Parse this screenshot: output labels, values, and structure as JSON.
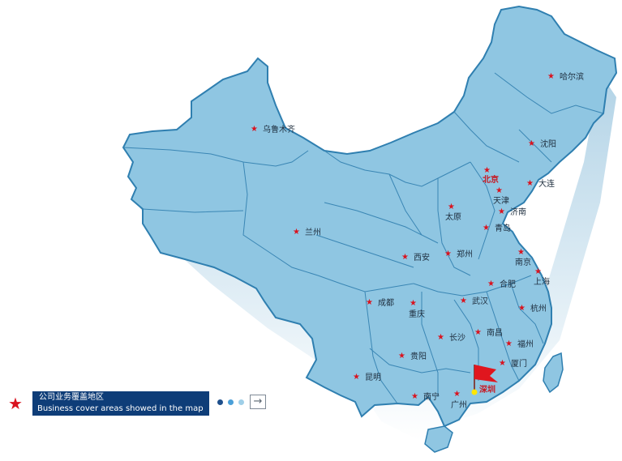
{
  "map": {
    "cities": [
      {
        "id": "urumqi",
        "name": "乌鲁木齐",
        "highlight": false
      },
      {
        "id": "harbin",
        "name": "哈尔滨",
        "highlight": false
      },
      {
        "id": "shenyang",
        "name": "沈阳",
        "highlight": false
      },
      {
        "id": "dalian",
        "name": "大连",
        "highlight": false
      },
      {
        "id": "beijing",
        "name": "北京",
        "highlight": true
      },
      {
        "id": "tianjin",
        "name": "天津",
        "highlight": false
      },
      {
        "id": "taiyuan",
        "name": "太原",
        "highlight": false
      },
      {
        "id": "jinan",
        "name": "济南",
        "highlight": false
      },
      {
        "id": "qingdao",
        "name": "青岛",
        "highlight": false
      },
      {
        "id": "lanzhou",
        "name": "兰州",
        "highlight": false
      },
      {
        "id": "xian",
        "name": "西安",
        "highlight": false
      },
      {
        "id": "zhengzhou",
        "name": "郑州",
        "highlight": false
      },
      {
        "id": "nanjing",
        "name": "南京",
        "highlight": false
      },
      {
        "id": "shanghai",
        "name": "上海",
        "highlight": false
      },
      {
        "id": "hefei",
        "name": "合肥",
        "highlight": false
      },
      {
        "id": "chengdu",
        "name": "成都",
        "highlight": false
      },
      {
        "id": "chongqing",
        "name": "重庆",
        "highlight": false
      },
      {
        "id": "wuhan",
        "name": "武汉",
        "highlight": false
      },
      {
        "id": "hangzhou",
        "name": "杭州",
        "highlight": false
      },
      {
        "id": "changsha",
        "name": "长沙",
        "highlight": false
      },
      {
        "id": "nanchang",
        "name": "南昌",
        "highlight": false
      },
      {
        "id": "fuzhou",
        "name": "福州",
        "highlight": false
      },
      {
        "id": "guiyang",
        "name": "贵阳",
        "highlight": false
      },
      {
        "id": "xiamen",
        "name": "厦门",
        "highlight": false
      },
      {
        "id": "kunming",
        "name": "昆明",
        "highlight": false
      },
      {
        "id": "nanning",
        "name": "南宁",
        "highlight": false
      },
      {
        "id": "guangzhou",
        "name": "广州",
        "highlight": false
      },
      {
        "id": "shenzhen",
        "name": "深圳",
        "highlight": true
      }
    ],
    "colors": {
      "land": "#8fc6e2",
      "border": "#2f7fb0",
      "star": "#d9131f",
      "flag": "#e0161e",
      "legend_bg": "#0e3d78"
    },
    "marker_icon": "red-flag-icon"
  },
  "legend": {
    "icon": "star-icon",
    "title_cn": "公司业务覆盖地区",
    "title_en": "Business cover areas showed in the map",
    "dots": [
      "#1e4f8c",
      "#4a9fd8",
      "#9fcfe8"
    ],
    "next_icon": "arrow-right-bar-icon"
  }
}
